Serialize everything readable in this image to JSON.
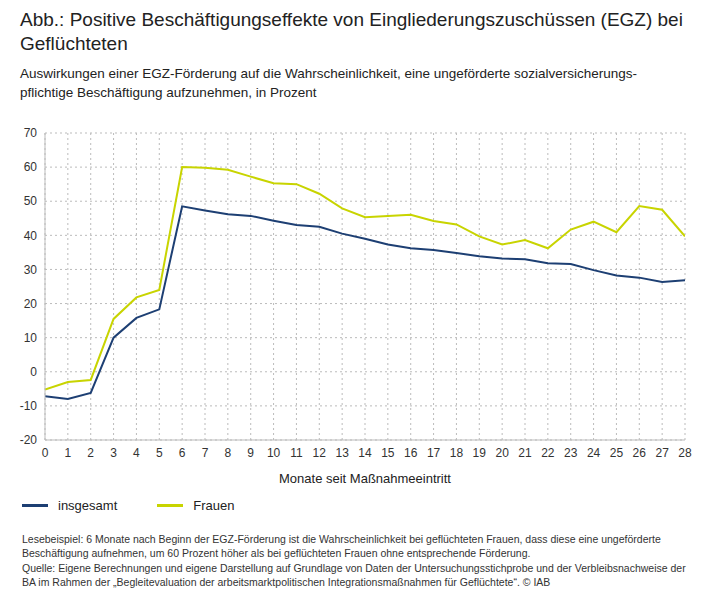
{
  "chart_data": {
    "type": "line",
    "title": "Abb.: Positive Beschäftigungseffekte von Eingliederungszuschüssen (EGZ) bei Geflüchteten",
    "subtitle": "Auswirkungen einer EGZ-Förderung auf die Wahrscheinlichkeit, eine ungeförderte sozialversicherungs-pflichtige Beschäftigung aufzunehmen, in Prozent",
    "x_label": "Monate seit Maßnahmeeintritt",
    "x": [
      0,
      1,
      2,
      3,
      4,
      5,
      6,
      7,
      8,
      9,
      10,
      11,
      12,
      13,
      14,
      15,
      16,
      17,
      18,
      19,
      20,
      21,
      22,
      23,
      24,
      25,
      26,
      27,
      28
    ],
    "xlim": [
      0,
      28
    ],
    "xticks": [
      0,
      1,
      2,
      3,
      4,
      5,
      6,
      7,
      8,
      9,
      10,
      11,
      12,
      13,
      14,
      15,
      16,
      17,
      18,
      19,
      20,
      21,
      22,
      23,
      24,
      25,
      26,
      27,
      28
    ],
    "ylim": [
      -20,
      70
    ],
    "yticks": [
      -20,
      -10,
      0,
      10,
      20,
      30,
      40,
      50,
      60,
      70
    ],
    "grid": true,
    "legend": "bottom left",
    "series": [
      {
        "name": "insgesamt",
        "color": "#1d3f73",
        "values": [
          -7.2,
          -8,
          -6.2,
          10,
          15.8,
          18.3,
          48.5,
          47.3,
          46.2,
          45.7,
          44.3,
          43,
          42.5,
          40.5,
          39,
          37.3,
          36.2,
          35.7,
          34.8,
          33.9,
          33.2,
          33,
          31.8,
          31.6,
          29.8,
          28.2,
          27.6,
          26.3,
          26.8
        ]
      },
      {
        "name": "Frauen",
        "color": "#c8d400",
        "values": [
          -5.2,
          -3,
          -2.4,
          15.5,
          21.8,
          24,
          60,
          59.8,
          59.2,
          57.2,
          55.3,
          55,
          52.2,
          47.9,
          45.3,
          45.7,
          46,
          44.2,
          43.2,
          39.7,
          37.3,
          38.6,
          36.2,
          41.7,
          44,
          40.9,
          48.6,
          47.5,
          39.7
        ]
      }
    ],
    "notes": [
      "Lesebeispiel: 6 Monate nach Beginn der EGZ-Förderung ist die Wahrscheinlichkeit bei geflüchteten Frauen, dass diese eine ungeförderte Beschäftigung aufnehmen, um 60 Prozent höher als bei geflüchteten Frauen ohne entsprechende Förderung.",
      "Quelle: Eigene Berechnungen und eigene Darstellung auf Grundlage von Daten der Untersuchungsstichprobe und der Verbleibsnachweise der BA im Rahmen der „Begleitevaluation der arbeitsmarktpolitischen Integrationsmaßnahmen für Geflüchtete“. © IAB"
    ]
  }
}
